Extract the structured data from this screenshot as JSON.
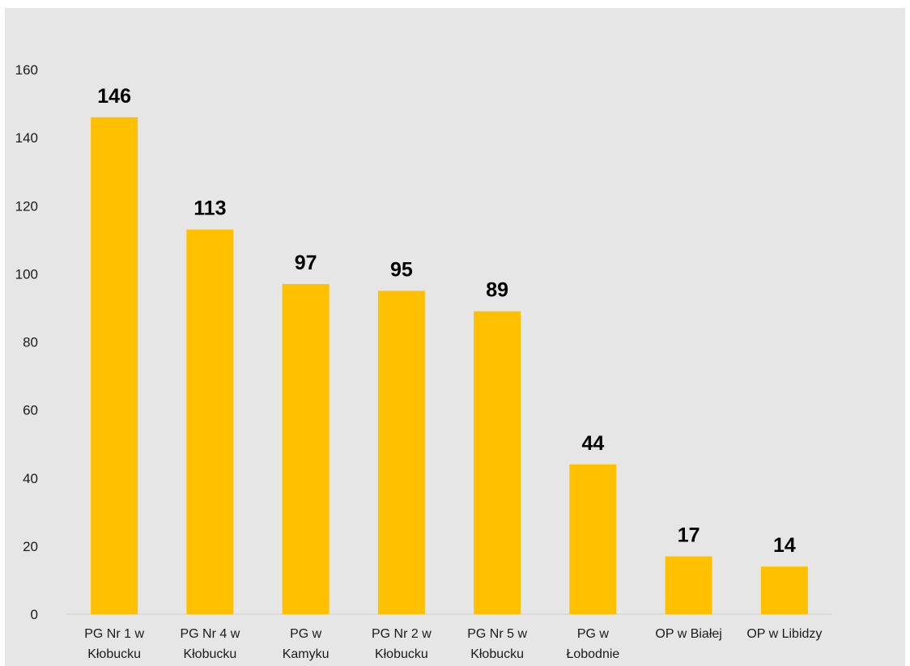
{
  "chart_data": {
    "type": "bar",
    "categories": [
      [
        "PG Nr 1 w",
        "Kłobucku"
      ],
      [
        "PG Nr 4 w",
        "Kłobucku"
      ],
      [
        "PG w",
        "Kamyku"
      ],
      [
        "PG Nr 2 w",
        "Kłobucku"
      ],
      [
        "PG Nr 5 w",
        "Kłobucku"
      ],
      [
        "PG w",
        "Łobodnie"
      ],
      [
        "OP w Białej"
      ],
      [
        "OP w Libidzy"
      ]
    ],
    "values": [
      146,
      113,
      97,
      95,
      89,
      44,
      17,
      14
    ],
    "ylim": [
      0,
      160
    ],
    "yticks": [
      0,
      20,
      40,
      60,
      80,
      100,
      120,
      140,
      160
    ],
    "title": "",
    "xlabel": "",
    "ylabel": "",
    "grid": false,
    "legend": "none",
    "colors": {
      "bar": "#FFC000",
      "background": "#E7E6E6",
      "axis": "#D9D9D9",
      "text": "#000000"
    }
  }
}
